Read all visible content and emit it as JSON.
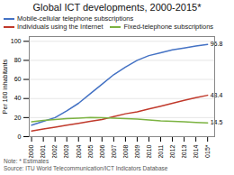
{
  "chart_data": {
    "type": "line",
    "title": "Global ICT developments, 2000-2015*",
    "ylabel": "Per 100 inhabitants",
    "x": [
      2000,
      2001,
      2002,
      2003,
      2004,
      2005,
      2006,
      2007,
      2008,
      2009,
      2010,
      2011,
      2012,
      2013,
      2014,
      2015
    ],
    "series": [
      {
        "name": "Mobile-cellular telephone subscriptions",
        "color": "#4472c4",
        "values": [
          12,
          16,
          20,
          27,
          35,
          45,
          55,
          65,
          73,
          80,
          85,
          88,
          91,
          93,
          95,
          96.8
        ]
      },
      {
        "name": "Individuals using the Internet",
        "color": "#c0392b",
        "values": [
          6,
          8,
          10,
          12,
          14,
          16,
          18,
          21,
          24,
          26,
          29,
          32,
          35,
          38,
          41,
          43.4
        ]
      },
      {
        "name": "Fixed-telephone subscriptions",
        "color": "#7cb342",
        "values": [
          15.5,
          17,
          18,
          19,
          19.5,
          20,
          19.8,
          19.5,
          19,
          18.5,
          17.5,
          16.5,
          16,
          15.5,
          15,
          14.5
        ]
      }
    ],
    "xlim": [
      1999.8,
      2015.6
    ],
    "xticks": [
      2000,
      2001,
      2002,
      2003,
      2004,
      2005,
      2006,
      2007,
      2008,
      2009,
      2010,
      2011,
      2012,
      2013,
      2014,
      {
        "value": 2015,
        "label": "2015*"
      }
    ],
    "ylim": [
      0,
      105
    ],
    "yticks": [
      0,
      20,
      40,
      60,
      80,
      100
    ],
    "grid": true,
    "legend": "upper left",
    "annotations": [
      {
        "text": "96.8",
        "x": 2015,
        "y": 96.8
      },
      {
        "text": "43.4",
        "x": 2015,
        "y": 43.4
      },
      {
        "text": "14.5",
        "x": 2015,
        "y": 14.5
      }
    ],
    "note": "Note: * Estimates",
    "source": "Source: ITU World Telecommunication/ICT Indicators Database"
  }
}
